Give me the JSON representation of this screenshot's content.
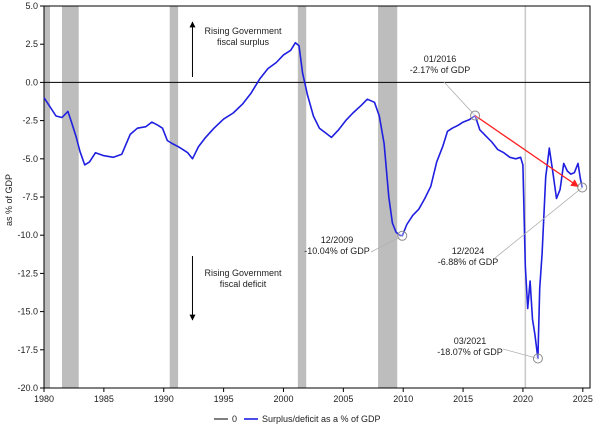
{
  "chart_data": {
    "type": "line",
    "title": "",
    "xlabel": "",
    "ylabel": "as % of GDP",
    "xlim": [
      1980,
      2025.6
    ],
    "ylim": [
      -20,
      5
    ],
    "x_ticks": [
      1980,
      1985,
      1990,
      1995,
      2000,
      2005,
      2010,
      2015,
      2020,
      2025
    ],
    "y_ticks": [
      5.0,
      2.5,
      0.0,
      -2.5,
      -5.0,
      -7.5,
      -10.0,
      -12.5,
      -15.0,
      -17.5,
      -20.0
    ],
    "y_tick_labels": [
      "5.0",
      "2.5",
      "0.0",
      "-2.5",
      "-5.0",
      "-7.5",
      "-10.0",
      "-12.5",
      "-15.0",
      "-17.5",
      "-20.0"
    ],
    "grid": false,
    "legend_position": "bottom",
    "recession_bands": [
      [
        1980.0,
        1980.5
      ],
      [
        1981.5,
        1982.9
      ],
      [
        1990.5,
        1991.2
      ],
      [
        2001.2,
        2001.9
      ],
      [
        2007.9,
        2009.5
      ]
    ],
    "recession_color": "#bdbdbd",
    "marker_line_x": 2020.2,
    "marker_line_color": "#c8c8c8",
    "series": [
      {
        "name": "0",
        "color": "#000000",
        "x": [
          1980,
          2025.6
        ],
        "y": [
          0,
          0
        ]
      },
      {
        "name": "Surplus/deficit as a % of GDP",
        "color": "#1f1fe0",
        "x": [
          1980.0,
          1980.5,
          1981.0,
          1981.5,
          1982.0,
          1982.3,
          1982.7,
          1983.0,
          1983.4,
          1983.8,
          1984.3,
          1985.0,
          1985.8,
          1986.5,
          1987.2,
          1987.8,
          1988.5,
          1989.0,
          1989.5,
          1989.9,
          1990.3,
          1990.7,
          1991.2,
          1991.6,
          1992.0,
          1992.4,
          1992.9,
          1993.5,
          1994.2,
          1995.0,
          1995.8,
          1996.6,
          1997.3,
          1998.0,
          1998.7,
          1999.4,
          2000.0,
          2000.6,
          2001.0,
          2001.3,
          2001.6,
          2002.0,
          2002.5,
          2003.0,
          2003.5,
          2004.0,
          2004.6,
          2005.2,
          2005.8,
          2006.5,
          2007.0,
          2007.6,
          2008.0,
          2008.4,
          2008.8,
          2009.1,
          2009.4,
          2009.7,
          2009.92,
          2010.3,
          2010.8,
          2011.3,
          2011.8,
          2012.3,
          2012.8,
          2013.3,
          2013.7,
          2014.1,
          2014.6,
          2015.0,
          2015.5,
          2016.0,
          2016.4,
          2016.9,
          2017.4,
          2017.9,
          2018.4,
          2018.9,
          2019.4,
          2019.8,
          2020.0,
          2020.2,
          2020.4,
          2020.6,
          2020.8,
          2021.0,
          2021.25,
          2021.4,
          2021.6,
          2021.9,
          2022.2,
          2022.5,
          2022.8,
          2023.1,
          2023.4,
          2023.7,
          2024.0,
          2024.3,
          2024.6,
          2024.8,
          2024.95
        ],
        "y": [
          -1.0,
          -1.6,
          -2.2,
          -2.3,
          -1.9,
          -2.6,
          -3.6,
          -4.5,
          -5.4,
          -5.2,
          -4.6,
          -4.8,
          -4.9,
          -4.7,
          -3.4,
          -3.0,
          -2.9,
          -2.6,
          -2.8,
          -3.0,
          -3.8,
          -4.0,
          -4.2,
          -4.4,
          -4.6,
          -5.0,
          -4.2,
          -3.6,
          -3.0,
          -2.4,
          -2.0,
          -1.4,
          -0.7,
          0.2,
          0.9,
          1.3,
          1.8,
          2.1,
          2.6,
          2.4,
          0.6,
          -0.8,
          -2.2,
          -3.0,
          -3.3,
          -3.6,
          -3.1,
          -2.5,
          -2.0,
          -1.5,
          -1.1,
          -1.3,
          -2.2,
          -4.0,
          -7.5,
          -9.2,
          -9.8,
          -10.0,
          -10.04,
          -9.3,
          -8.7,
          -8.3,
          -7.6,
          -6.8,
          -5.2,
          -4.2,
          -3.2,
          -3.0,
          -2.8,
          -2.6,
          -2.45,
          -2.17,
          -3.1,
          -3.5,
          -3.9,
          -4.4,
          -4.6,
          -4.9,
          -5.0,
          -4.9,
          -5.4,
          -12.0,
          -14.8,
          -13.0,
          -15.5,
          -16.5,
          -18.07,
          -13.5,
          -11.2,
          -6.2,
          -4.3,
          -5.9,
          -7.6,
          -7.0,
          -5.3,
          -5.8,
          -6.0,
          -5.9,
          -5.3,
          -6.3,
          -6.88
        ]
      }
    ],
    "trend_arrow": {
      "color": "#ff2020",
      "from": [
        2016.0,
        -2.17
      ],
      "to": [
        2024.95,
        -6.88
      ]
    },
    "annotations": [
      {
        "id": "surplus-text",
        "lines": [
          "Rising Government",
          "fiscal surplus"
        ]
      },
      {
        "id": "deficit-text",
        "lines": [
          "Rising Government",
          "fiscal deficit"
        ]
      },
      {
        "id": "ann-2016",
        "lines": [
          "01/2016",
          "-2.17% of GDP"
        ],
        "x": 2016.0,
        "y": -2.17
      },
      {
        "id": "ann-2009",
        "lines": [
          "12/2009",
          "-10.04% of GDP"
        ],
        "x": 2009.92,
        "y": -10.04
      },
      {
        "id": "ann-2024",
        "lines": [
          "12/2024",
          "-6.88% of GDP"
        ],
        "x": 2024.95,
        "y": -6.88
      },
      {
        "id": "ann-2021",
        "lines": [
          "03/2021",
          "-18.07% of GDP"
        ],
        "x": 2021.25,
        "y": -18.07
      }
    ]
  }
}
